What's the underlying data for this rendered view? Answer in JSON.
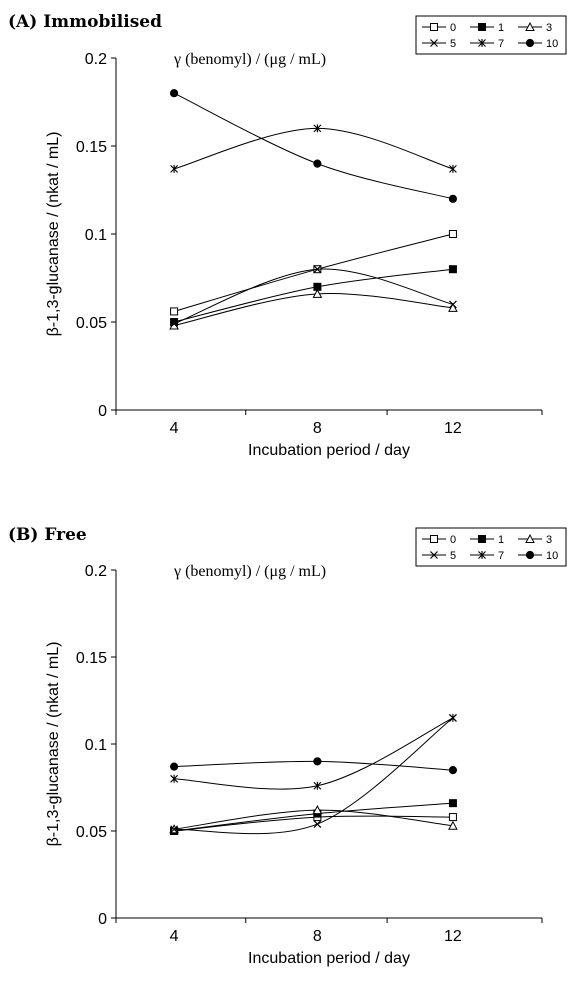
{
  "chart_data": [
    {
      "type": "line",
      "panel_label": "(A) Immobilised",
      "annotation": "γ (benomyl) / (μg / mL)",
      "xlabel": "Incubation period / day",
      "ylabel": "β-1,3-glucanase / (nkat / mL)",
      "x_ticks": [
        "4",
        "8",
        "12"
      ],
      "y_ticks": [
        "0",
        "0.05",
        "0.1",
        "0.15",
        "0.2"
      ],
      "xlim": [
        3,
        14
      ],
      "ylim": [
        0,
        0.2
      ],
      "legend_position": "top-right",
      "x": [
        4.5,
        8.2,
        11.7
      ],
      "series": [
        {
          "name": "0",
          "marker": "open-square",
          "values": [
            0.056,
            0.08,
            0.1
          ]
        },
        {
          "name": "1",
          "marker": "filled-square",
          "values": [
            0.05,
            0.07,
            0.08
          ]
        },
        {
          "name": "3",
          "marker": "open-triangle",
          "values": [
            0.048,
            0.066,
            0.058
          ]
        },
        {
          "name": "5",
          "marker": "x",
          "values": [
            0.049,
            0.08,
            0.06
          ]
        },
        {
          "name": "7",
          "marker": "star",
          "values": [
            0.137,
            0.16,
            0.137
          ]
        },
        {
          "name": "10",
          "marker": "filled-circle",
          "values": [
            0.18,
            0.14,
            0.12
          ]
        }
      ]
    },
    {
      "type": "line",
      "panel_label": "(B) Free",
      "annotation": "γ (benomyl) / (μg / mL)",
      "xlabel": "Incubation period / day",
      "ylabel": "β-1,3-glucanase / (nkat / mL)",
      "x_ticks": [
        "4",
        "8",
        "12"
      ],
      "y_ticks": [
        "0",
        "0.05",
        "0.1",
        "0.15",
        "0.2"
      ],
      "xlim": [
        3,
        14
      ],
      "ylim": [
        0,
        0.2
      ],
      "legend_position": "top-right",
      "x": [
        4.5,
        8.2,
        11.7
      ],
      "series": [
        {
          "name": "0",
          "marker": "open-square",
          "values": [
            0.05,
            0.058,
            0.058
          ]
        },
        {
          "name": "1",
          "marker": "filled-square",
          "values": [
            0.05,
            0.06,
            0.066
          ]
        },
        {
          "name": "3",
          "marker": "open-triangle",
          "values": [
            0.051,
            0.062,
            0.053
          ]
        },
        {
          "name": "5",
          "marker": "x",
          "values": [
            0.051,
            0.054,
            0.115
          ]
        },
        {
          "name": "7",
          "marker": "star",
          "values": [
            0.08,
            0.076,
            0.115
          ]
        },
        {
          "name": "10",
          "marker": "filled-circle",
          "values": [
            0.087,
            0.09,
            0.085
          ]
        }
      ]
    }
  ]
}
